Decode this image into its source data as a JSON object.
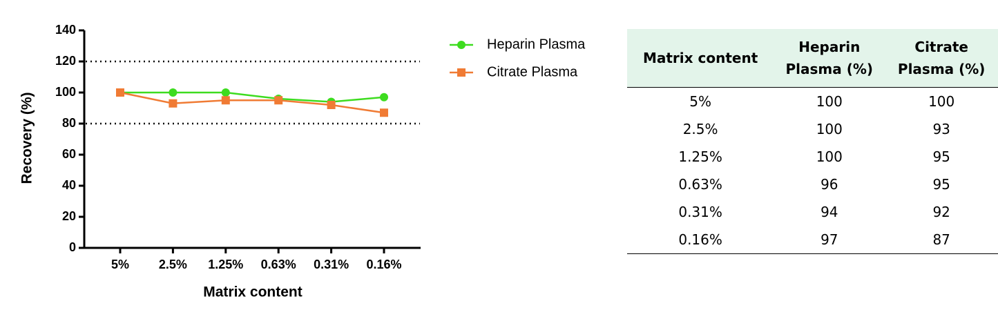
{
  "chart_data": {
    "type": "line",
    "x_label": "Matrix content",
    "y_label": "Recovery (%)",
    "categories": [
      "5%",
      "2.5%",
      "1.25%",
      "0.63%",
      "0.31%",
      "0.16%"
    ],
    "series": [
      {
        "name": "Heparin Plasma",
        "color": "#3ddc1f",
        "marker": "circle",
        "values": [
          100,
          100,
          100,
          96,
          94,
          97
        ]
      },
      {
        "name": "Citrate Plasma",
        "color": "#f07b34",
        "marker": "square",
        "values": [
          100,
          93,
          95,
          95,
          92,
          87
        ]
      }
    ],
    "ylim": [
      0,
      140
    ],
    "yticks": [
      0,
      20,
      40,
      60,
      80,
      100,
      120,
      140
    ],
    "reference_lines": [
      80,
      120
    ],
    "legend": "outside-right"
  },
  "table": {
    "columns": [
      "Matrix content",
      "Heparin Plasma (%)",
      "Citrate Plasma (%)"
    ],
    "rows": [
      [
        "5%",
        "100",
        "100"
      ],
      [
        "2.5%",
        "100",
        "93"
      ],
      [
        "1.25%",
        "100",
        "95"
      ],
      [
        "0.63%",
        "96",
        "95"
      ],
      [
        "0.31%",
        "94",
        "92"
      ],
      [
        "0.16%",
        "97",
        "87"
      ]
    ]
  }
}
